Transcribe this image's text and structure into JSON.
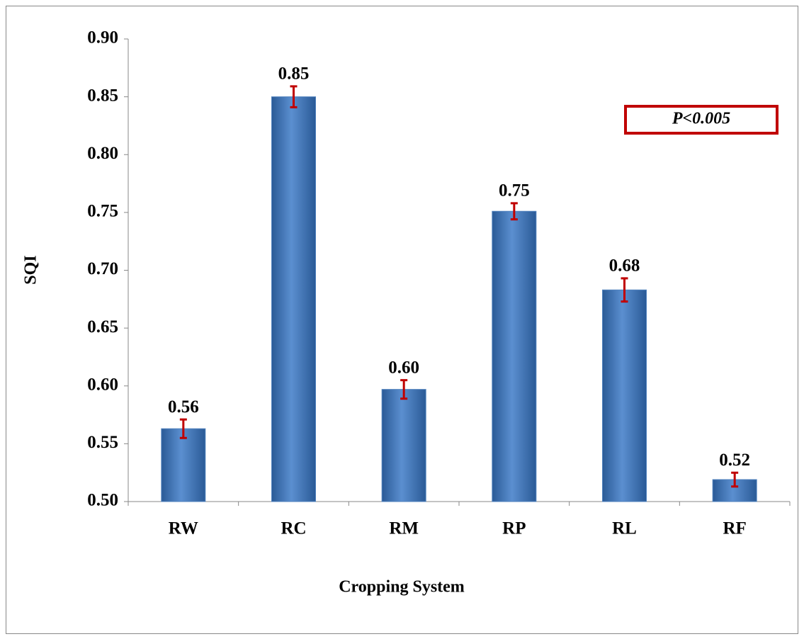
{
  "chart_data": {
    "type": "bar",
    "x_label": "Cropping System",
    "y_label": "SQI",
    "annotation": "P<0.005",
    "categories": [
      "RW",
      "RC",
      "RM",
      "RP",
      "RL",
      "RF"
    ],
    "values": [
      0.563,
      0.85,
      0.597,
      0.751,
      0.683,
      0.519
    ],
    "value_labels": [
      "0.56",
      "0.85",
      "0.60",
      "0.75",
      "0.68",
      "0.52"
    ],
    "errors": [
      0.008,
      0.009,
      0.008,
      0.007,
      0.01,
      0.006
    ],
    "color": "#4f81bd",
    "error_color": "#c00000",
    "ylim": [
      0.5,
      0.9
    ],
    "yticks": [
      {
        "value": 0.5,
        "label": "0.50"
      },
      {
        "value": 0.55,
        "label": "0.55"
      },
      {
        "value": 0.6,
        "label": "0.60"
      },
      {
        "value": 0.65,
        "label": "0.65"
      },
      {
        "value": 0.7,
        "label": "0.70"
      },
      {
        "value": 0.75,
        "label": "0.75"
      },
      {
        "value": 0.8,
        "label": "0.80"
      },
      {
        "value": 0.85,
        "label": "0.85"
      },
      {
        "value": 0.9,
        "label": "0.90"
      }
    ],
    "grid": false
  }
}
